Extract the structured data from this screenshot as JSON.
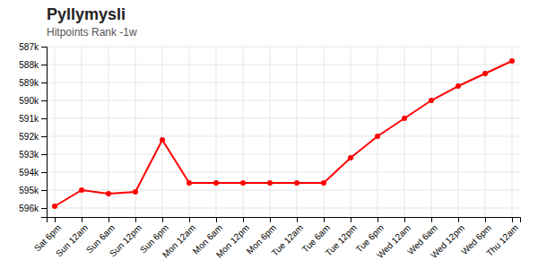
{
  "chart_data": {
    "type": "line",
    "title": "Pyllymysli",
    "subtitle": "Hitpoints Rank -1w",
    "categories": [
      "Sat 6pm",
      "Sun 12am",
      "Sun 6am",
      "Sun 12pm",
      "Sun 6pm",
      "Mon 12am",
      "Mon 6am",
      "Mon 12pm",
      "Mon 6pm",
      "Tue 12am",
      "Tue 6am",
      "Tue 12pm",
      "Tue 6pm",
      "Wed 12am",
      "Wed 6am",
      "Wed 12pm",
      "Wed 6pm",
      "Thu 12am"
    ],
    "values": [
      595900,
      595000,
      595200,
      595100,
      592200,
      594600,
      594600,
      594600,
      594600,
      594600,
      594600,
      593200,
      592000,
      591000,
      590000,
      589200,
      588500,
      587800
    ],
    "color": "#ff0000",
    "marker": "circle",
    "ylim": [
      596500,
      587000
    ],
    "yticks": [
      {
        "value": 587000,
        "label": "587k"
      },
      {
        "value": 588000,
        "label": "588k"
      },
      {
        "value": 589000,
        "label": "589k"
      },
      {
        "value": 590000,
        "label": "590k"
      },
      {
        "value": 591000,
        "label": "591k"
      },
      {
        "value": 592000,
        "label": "592k"
      },
      {
        "value": 593000,
        "label": "593k"
      },
      {
        "value": 594000,
        "label": "594k"
      },
      {
        "value": 595000,
        "label": "595k"
      },
      {
        "value": 596000,
        "label": "596k"
      }
    ],
    "grid": true
  }
}
